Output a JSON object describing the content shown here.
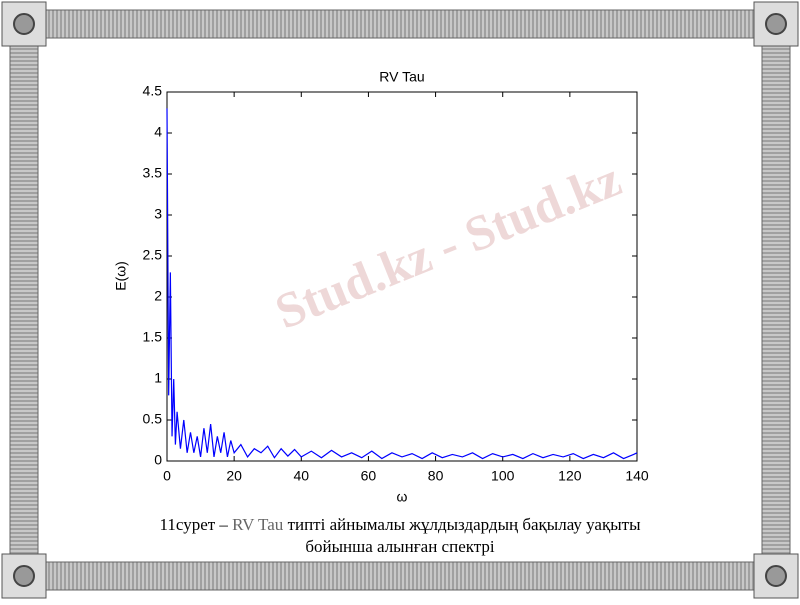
{
  "chart_data": {
    "type": "line",
    "title": "RV Tau",
    "x_label": "ω",
    "y_label": "E(ω)",
    "x": [
      0,
      0.5,
      1,
      1.5,
      2,
      2.5,
      3,
      4,
      5,
      6,
      7,
      8,
      9,
      10,
      11,
      12,
      13,
      14,
      15,
      16,
      17,
      18,
      19,
      20,
      22,
      24,
      26,
      28,
      30,
      32,
      34,
      36,
      38,
      40,
      43,
      46,
      49,
      52,
      55,
      58,
      61,
      64,
      67,
      70,
      73,
      76,
      79,
      82,
      85,
      88,
      91,
      94,
      97,
      100,
      103,
      106,
      109,
      112,
      115,
      118,
      121,
      124,
      127,
      130,
      133,
      136,
      139,
      140
    ],
    "series": [
      {
        "name": "E",
        "color": "#0000ff",
        "values": [
          4.3,
          0.8,
          2.3,
          0.3,
          1.0,
          0.2,
          0.6,
          0.15,
          0.5,
          0.1,
          0.35,
          0.1,
          0.3,
          0.05,
          0.4,
          0.1,
          0.45,
          0.05,
          0.3,
          0.1,
          0.35,
          0.05,
          0.25,
          0.1,
          0.2,
          0.05,
          0.15,
          0.1,
          0.18,
          0.04,
          0.15,
          0.06,
          0.14,
          0.05,
          0.12,
          0.04,
          0.13,
          0.05,
          0.1,
          0.04,
          0.12,
          0.03,
          0.1,
          0.05,
          0.09,
          0.03,
          0.1,
          0.04,
          0.08,
          0.05,
          0.1,
          0.03,
          0.09,
          0.05,
          0.08,
          0.03,
          0.09,
          0.04,
          0.08,
          0.05,
          0.09,
          0.03,
          0.08,
          0.04,
          0.1,
          0.03,
          0.08,
          0.1
        ]
      }
    ],
    "xlim": [
      0,
      140
    ],
    "xticks": [
      0,
      20,
      40,
      60,
      80,
      100,
      120,
      140
    ],
    "ylim": [
      0,
      4.5
    ],
    "yticks": [
      0,
      0.5,
      1,
      1.5,
      2,
      2.5,
      3,
      3.5,
      4,
      4.5
    ]
  },
  "caption": {
    "parts": [
      "11сурет – ",
      "RV Tau",
      " типті айнымалы жұлдыздардың бақылау уақыты"
    ],
    "line2": "бойынша алынған спектрі"
  },
  "watermark": "Stud.kz - Stud.kz"
}
